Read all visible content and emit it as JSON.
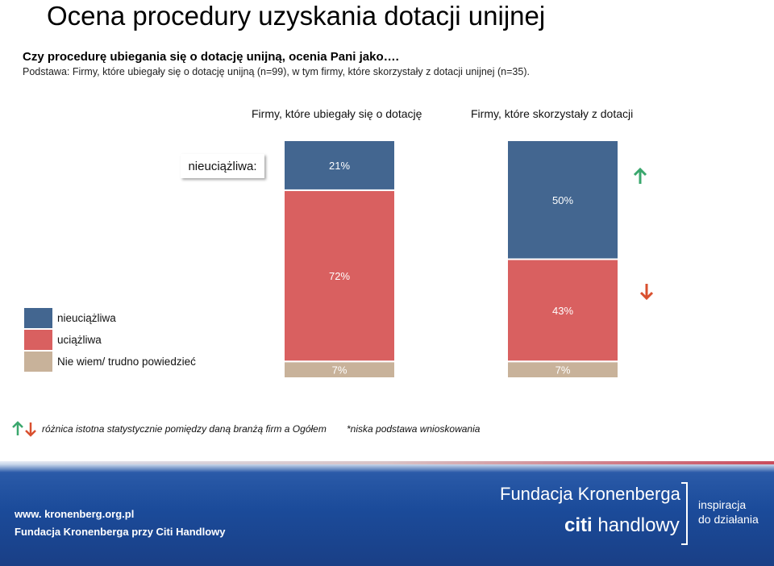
{
  "title": "Ocena procedury uzyskania dotacji unijnej",
  "question": "Czy procedurę ubiegania się o dotację unijną, ocenia Pani jako….",
  "basis": "Podstawa: Firmy, które  ubiegały się o dotację unijną (n=99), w tym firmy, które  skorzystały z dotacji unijnej (n=35).",
  "callout_label": "nieuciążliwa:",
  "legend": [
    {
      "label": "nieuciążliwa",
      "color": "#436690"
    },
    {
      "label": "uciążliwa",
      "color": "#d96060"
    },
    {
      "label": "Nie wiem/ trudno powiedzieć",
      "color": "#c8b29a"
    }
  ],
  "significance": {
    "up_color": "#3aa76d",
    "down_color": "#d9502f",
    "col2_nieuciazliwa": "up",
    "col2_uciazliwa": "down"
  },
  "footnotes": {
    "significance": "różnica istotna statystycznie pomiędzy daną branżą firm a Ogółem",
    "low_base": "*niska podstawa wnioskowania"
  },
  "footer": {
    "url": "www. kronenberg.org.pl",
    "org": "Fundacja Kronenberga przy Citi Handlowy",
    "brand": "Fundacja Kronenberga",
    "citi_a": "citi",
    "citi_b": " handlowy",
    "slogan1": "inspiracja",
    "slogan2": "do działania"
  },
  "chart_data": {
    "type": "bar",
    "stacked": true,
    "percent_scale": true,
    "categories": [
      "Firmy, które ubiegały się o dotację",
      "Firmy, które skorzystały z dotacji"
    ],
    "series": [
      {
        "name": "nieuciążliwa",
        "values": [
          21,
          50
        ],
        "labels": [
          "21%",
          "50%"
        ],
        "color": "#436690"
      },
      {
        "name": "uciążliwa",
        "values": [
          72,
          43
        ],
        "labels": [
          "72%",
          "43%"
        ],
        "color": "#d96060"
      },
      {
        "name": "Nie wiem/ trudno powiedzieć",
        "values": [
          7,
          7
        ],
        "labels": [
          "7%",
          "7%"
        ],
        "color": "#c8b29a"
      }
    ],
    "ylim": [
      0,
      100
    ]
  }
}
